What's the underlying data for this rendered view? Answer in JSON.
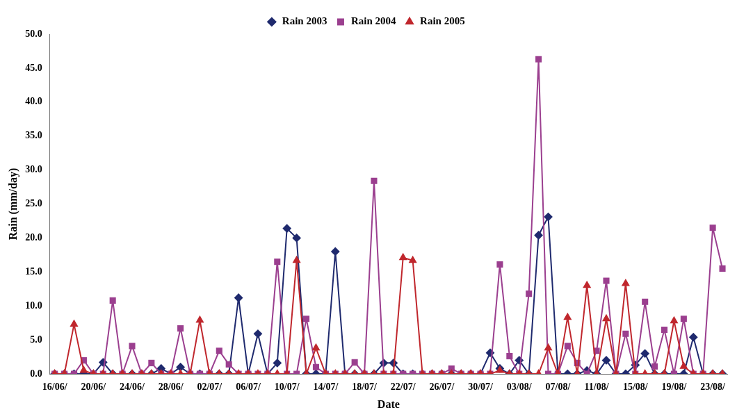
{
  "chart_data": {
    "type": "line",
    "xlabel": "Date",
    "ylabel": "Rain (mm/day)",
    "categories": [
      "16/06/",
      null,
      null,
      null,
      "20/06/",
      null,
      null,
      null,
      "24/06/",
      null,
      null,
      null,
      "28/06/",
      null,
      null,
      null,
      "02/07/",
      null,
      null,
      null,
      "06/07/",
      null,
      null,
      null,
      "10/07/",
      null,
      null,
      null,
      "14/07/",
      null,
      null,
      null,
      "18/07/",
      null,
      null,
      null,
      "22/07/",
      null,
      null,
      null,
      "26/07/",
      null,
      null,
      null,
      "30/07/",
      null,
      null,
      null,
      "03/08/",
      null,
      null,
      null,
      "07/08/",
      null,
      null,
      null,
      "11/08/",
      null,
      null,
      null,
      "15/08/",
      null,
      null,
      null,
      "19/08/",
      null,
      null,
      null,
      "23/08/",
      null
    ],
    "series": [
      {
        "name": "Rain 2003",
        "color": "#1f2a6e",
        "marker": "diamond",
        "values": [
          0,
          0,
          0,
          0,
          0,
          1.7,
          0,
          0,
          0,
          0,
          0,
          0.8,
          0,
          1.0,
          0,
          0,
          0,
          0,
          0,
          11.2,
          0,
          5.9,
          0,
          1.6,
          21.4,
          20.0,
          0,
          0,
          0,
          18.0,
          0,
          0,
          0,
          0,
          1.6,
          1.6,
          0,
          0,
          0,
          0,
          0,
          0,
          0,
          0,
          0,
          3.1,
          0.8,
          0,
          2.0,
          0,
          20.4,
          23.1,
          0,
          0,
          0,
          0.5,
          0,
          2.0,
          0,
          0,
          1.3,
          3.0,
          0,
          0,
          0,
          0,
          5.4,
          0,
          0,
          0
        ]
      },
      {
        "name": "Rain 2004",
        "color": "#9b3f8f",
        "marker": "square",
        "values": [
          0,
          0,
          0,
          2.0,
          0,
          0,
          10.8,
          0,
          4.1,
          0,
          1.6,
          0,
          0,
          6.7,
          0,
          0,
          0,
          3.4,
          1.4,
          0,
          0,
          0,
          0,
          16.5,
          0,
          0,
          8.1,
          1.0,
          0,
          0,
          0,
          1.7,
          0,
          28.4,
          0,
          0,
          0,
          0,
          0,
          0,
          0,
          0.8,
          0,
          0,
          0,
          0,
          16.1,
          2.6,
          0,
          11.8,
          46.3,
          0,
          0,
          4.1,
          1.6,
          0,
          3.4,
          13.7,
          0,
          5.9,
          0,
          10.6,
          1.1,
          6.5,
          0,
          8.1,
          0,
          0,
          21.5,
          15.5
        ]
      },
      {
        "name": "Rain 2005",
        "color": "#c0272d",
        "marker": "triangle",
        "values": [
          0,
          0,
          7.3,
          0.5,
          0,
          0,
          0,
          0,
          0,
          0,
          0,
          0,
          0,
          0,
          0,
          7.9,
          0,
          0,
          0,
          0,
          0,
          0,
          0,
          0,
          0,
          16.7,
          0,
          3.8,
          0,
          0,
          0,
          0,
          0,
          0,
          0,
          0,
          17.1,
          16.7,
          0,
          0,
          0,
          0,
          0,
          0,
          0,
          0,
          0.5,
          0,
          0,
          0,
          0,
          3.8,
          0,
          8.3,
          0,
          13.0,
          0,
          8.1,
          0,
          13.3,
          0,
          0,
          0,
          0,
          7.8,
          1.1,
          0,
          0,
          0,
          0
        ]
      }
    ],
    "ylim": [
      0,
      50
    ],
    "yticks": [
      {
        "value": 0,
        "label": "0.0"
      },
      {
        "value": 5,
        "label": "5.0"
      },
      {
        "value": 10,
        "label": "10.0"
      },
      {
        "value": 15,
        "label": "15.0"
      },
      {
        "value": 20,
        "label": "20.0"
      },
      {
        "value": 25,
        "label": "25.0"
      },
      {
        "value": 30,
        "label": "30.0"
      },
      {
        "value": 35,
        "label": "35.0"
      },
      {
        "value": 40,
        "label": "40.0"
      },
      {
        "value": 45,
        "label": "45.0"
      },
      {
        "value": 50,
        "label": "50.0"
      }
    ],
    "grid": false,
    "legend": "top",
    "line_style": "solid"
  }
}
